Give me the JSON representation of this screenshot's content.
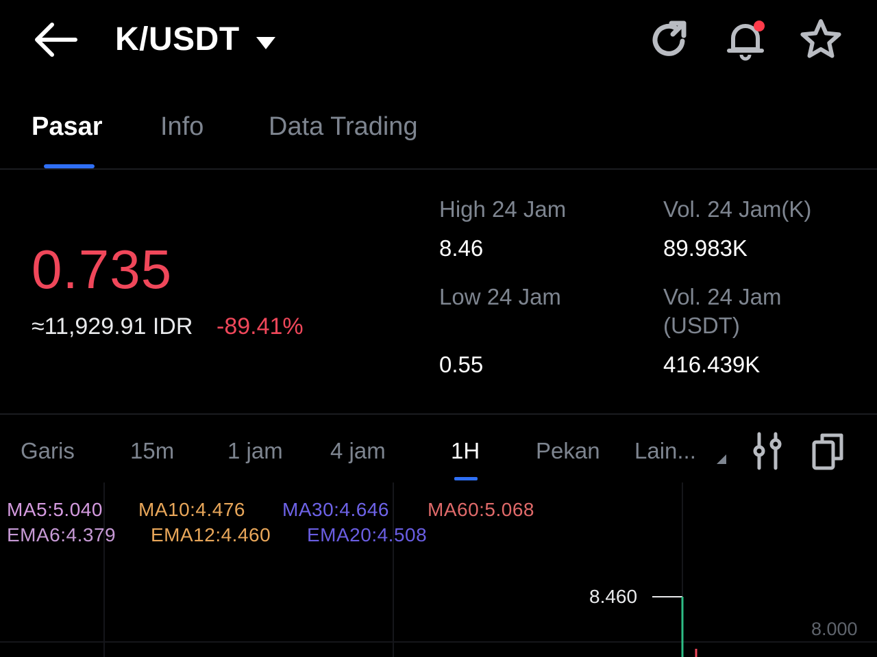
{
  "header": {
    "pair": "K/USDT",
    "icons": [
      "back-arrow-icon",
      "caret-down-icon",
      "refresh-icon",
      "bell-icon",
      "star-icon"
    ],
    "notification_dot_color": "#ff3b4a"
  },
  "tabs": [
    {
      "label": "Pasar",
      "active": true
    },
    {
      "label": "Info",
      "active": false
    },
    {
      "label": "Data Trading",
      "active": false
    }
  ],
  "ticker": {
    "last_price": "0.735",
    "fiat_price": "≈11,929.91 IDR",
    "change_pct": "-89.41%",
    "high_label": "High 24 Jam",
    "high_value": "8.46",
    "low_label": "Low 24 Jam",
    "low_value": "0.55",
    "vol_base_label": "Vol. 24 Jam(K)",
    "vol_base_value": "89.983K",
    "vol_quote_label_line1": "Vol. 24 Jam",
    "vol_quote_label_line2": "(USDT)",
    "vol_quote_value": "416.439K"
  },
  "intervals": [
    {
      "label": "Garis",
      "active": false
    },
    {
      "label": "15m",
      "active": false
    },
    {
      "label": "1 jam",
      "active": false
    },
    {
      "label": "4 jam",
      "active": false
    },
    {
      "label": "1H",
      "active": true
    },
    {
      "label": "Pekan",
      "active": false
    },
    {
      "label": "Lain...",
      "active": false
    }
  ],
  "chart_tools": [
    "indicator-settings-icon",
    "landscape-rotate-icon"
  ],
  "indicators": {
    "ma5": "MA5:5.040",
    "ma10": "MA10:4.476",
    "ma30": "MA30:4.646",
    "ma60": "MA60:5.068",
    "ema6": "EMA6:4.379",
    "ema12": "EMA12:4.460",
    "ema20": "EMA20:4.508"
  },
  "chart": {
    "high_marker": "8.460",
    "axis_label": "8.000"
  },
  "colors": {
    "accent": "#2f6ff5",
    "down": "#f0475a",
    "up": "#2ebd85",
    "ma5": "#d59be0",
    "ma10": "#e9a75a",
    "ma30": "#6e63e8",
    "ma60": "#e06a6a",
    "ema6": "#c79ad6",
    "ema12": "#e9a75a",
    "ema20": "#6a5ee3"
  }
}
